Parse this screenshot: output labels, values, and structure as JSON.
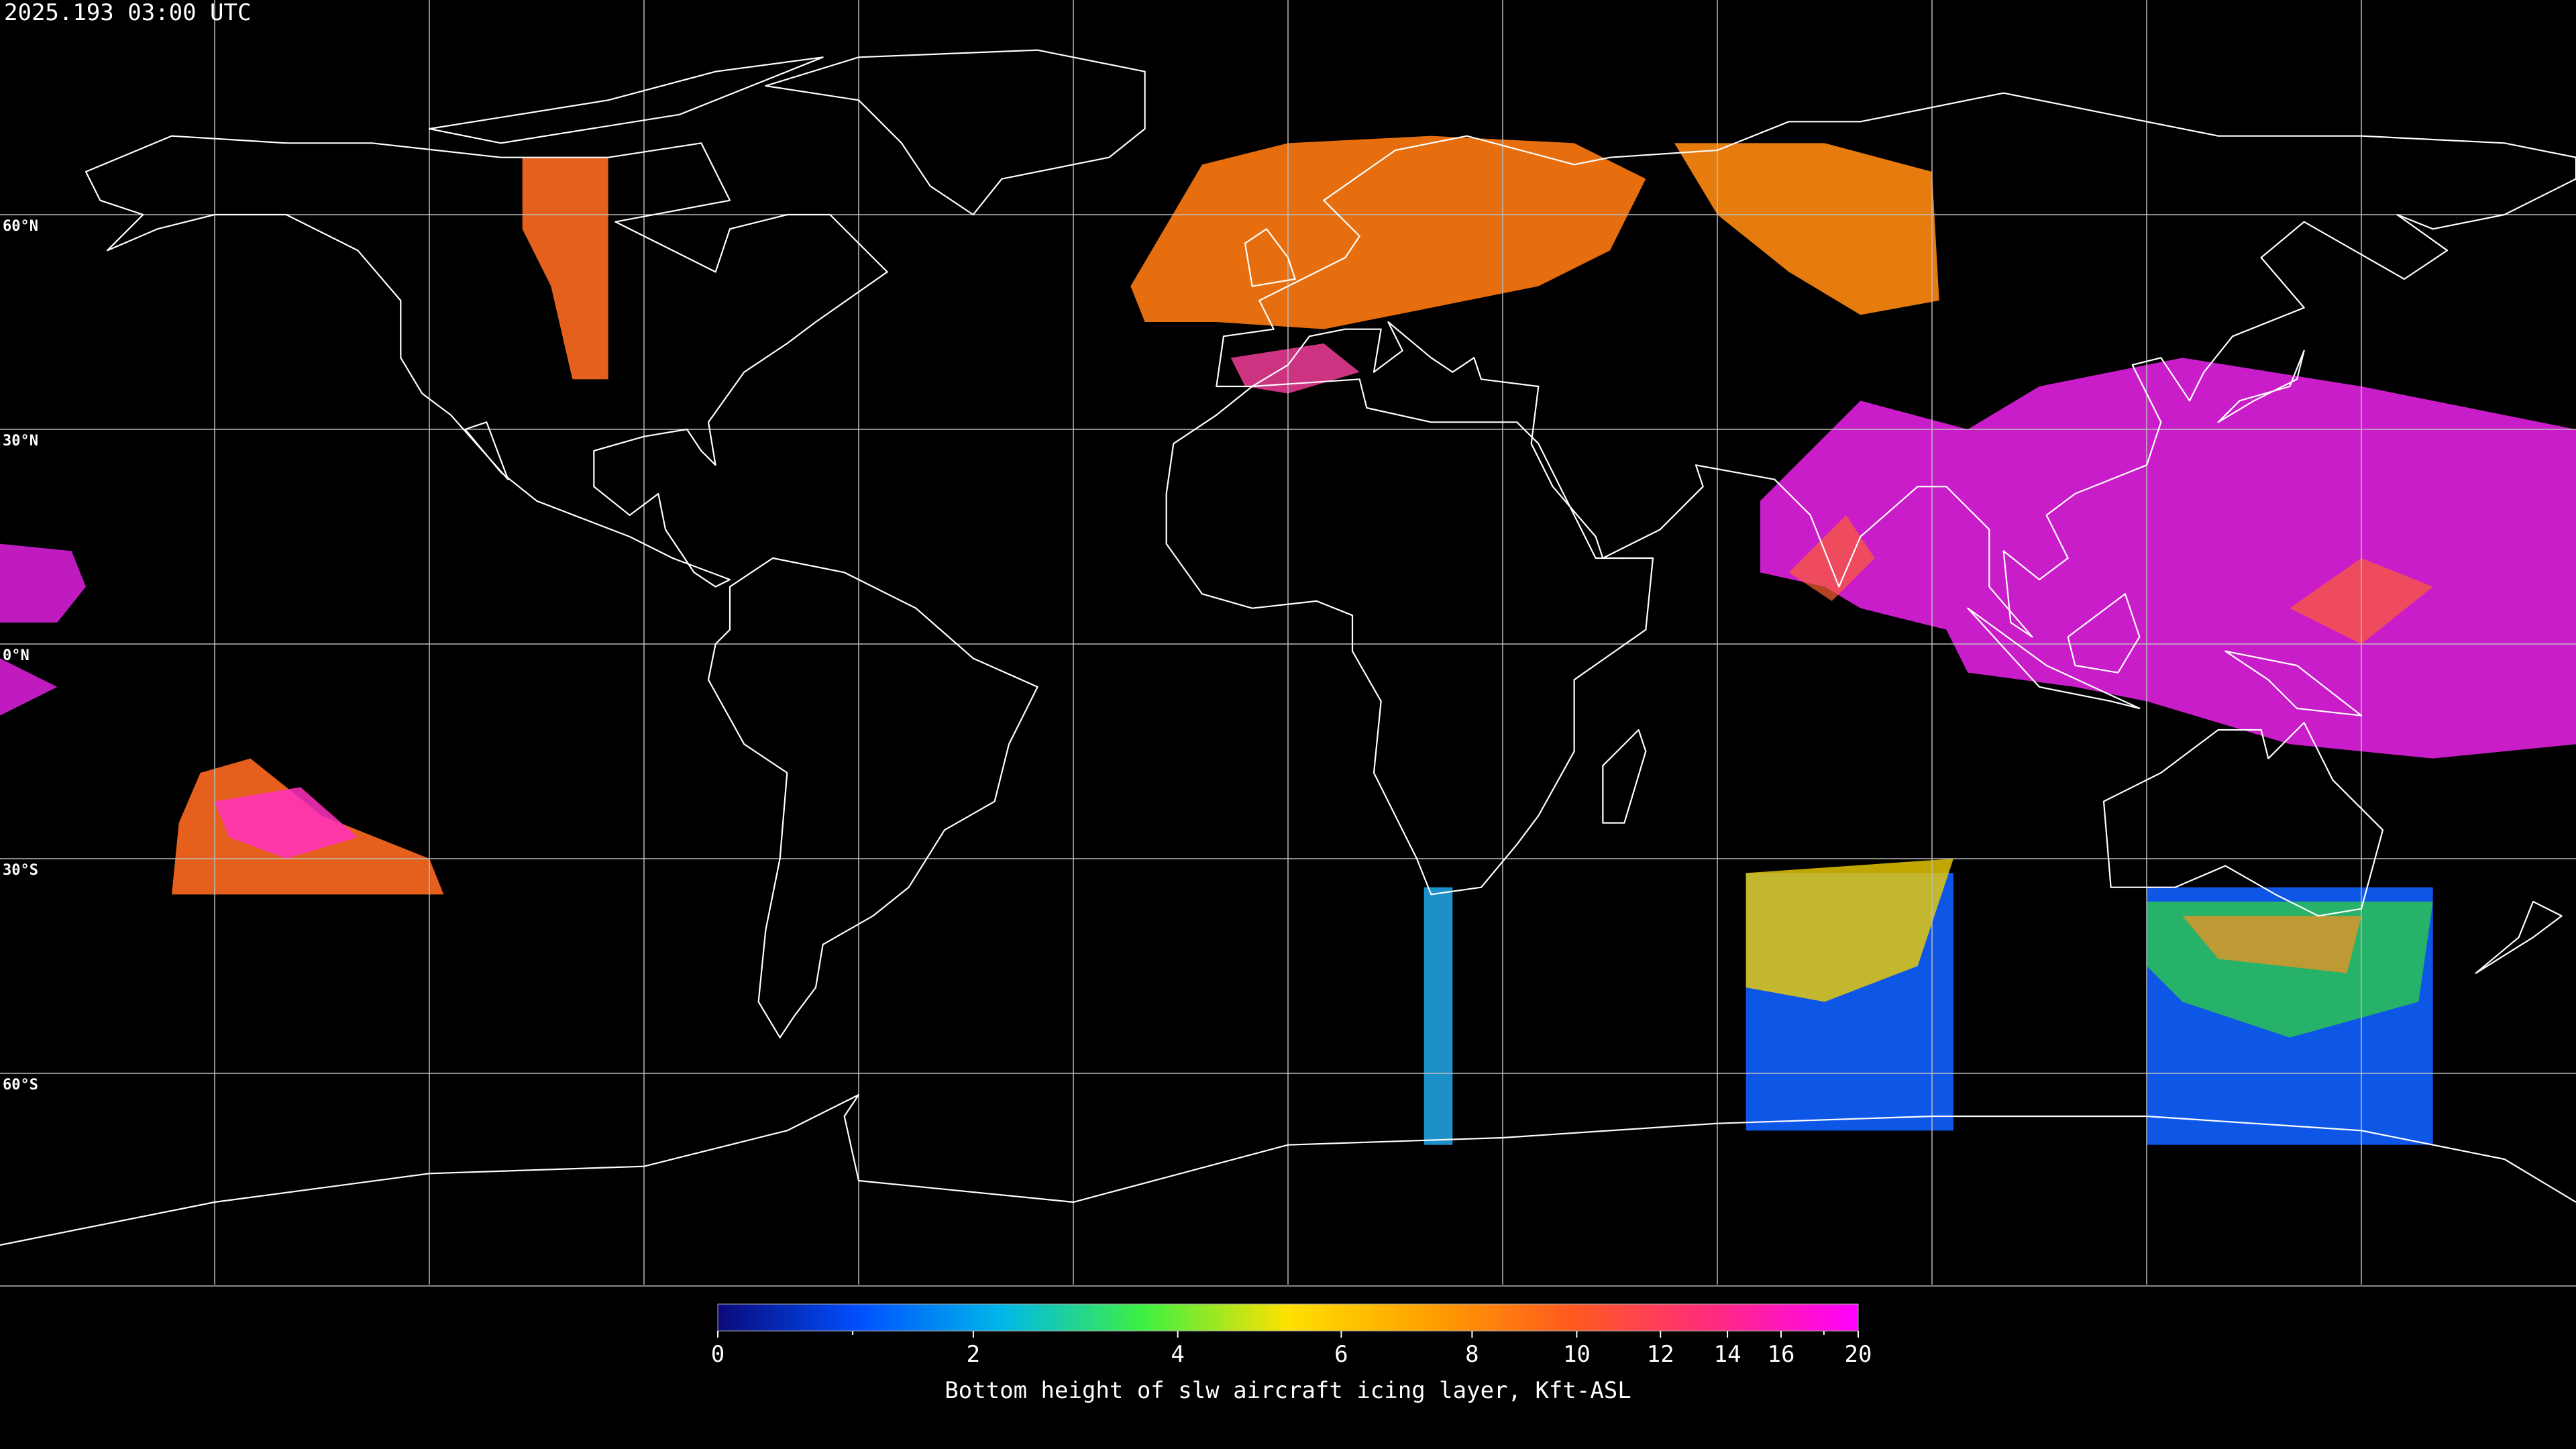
{
  "timestamp": "2025.193 03:00 UTC",
  "map": {
    "lat_lines": [
      {
        "value": 60,
        "label": "60°N"
      },
      {
        "value": 30,
        "label": "30°N"
      },
      {
        "value": 0,
        "label": "0°N"
      },
      {
        "value": -30,
        "label": "30°S"
      },
      {
        "value": -60,
        "label": "60°S"
      }
    ],
    "lon_lines": [
      -150,
      -120,
      -90,
      -60,
      -30,
      0,
      30,
      60,
      90,
      120,
      150
    ]
  },
  "colorbar": {
    "title": "Bottom height of slw aircraft icing layer, Kft-ASL",
    "lim": [
      0,
      20
    ],
    "ticks": [
      0,
      2,
      4,
      6,
      8,
      10,
      12,
      14,
      16,
      20
    ],
    "minor_ticks": [
      1,
      18
    ],
    "colors": [
      "#0a0a7a",
      "#0050ff",
      "#00b8e8",
      "#40f040",
      "#ffe000",
      "#ffa000",
      "#ff5a20",
      "#ff2a80",
      "#ff00ff"
    ]
  }
}
